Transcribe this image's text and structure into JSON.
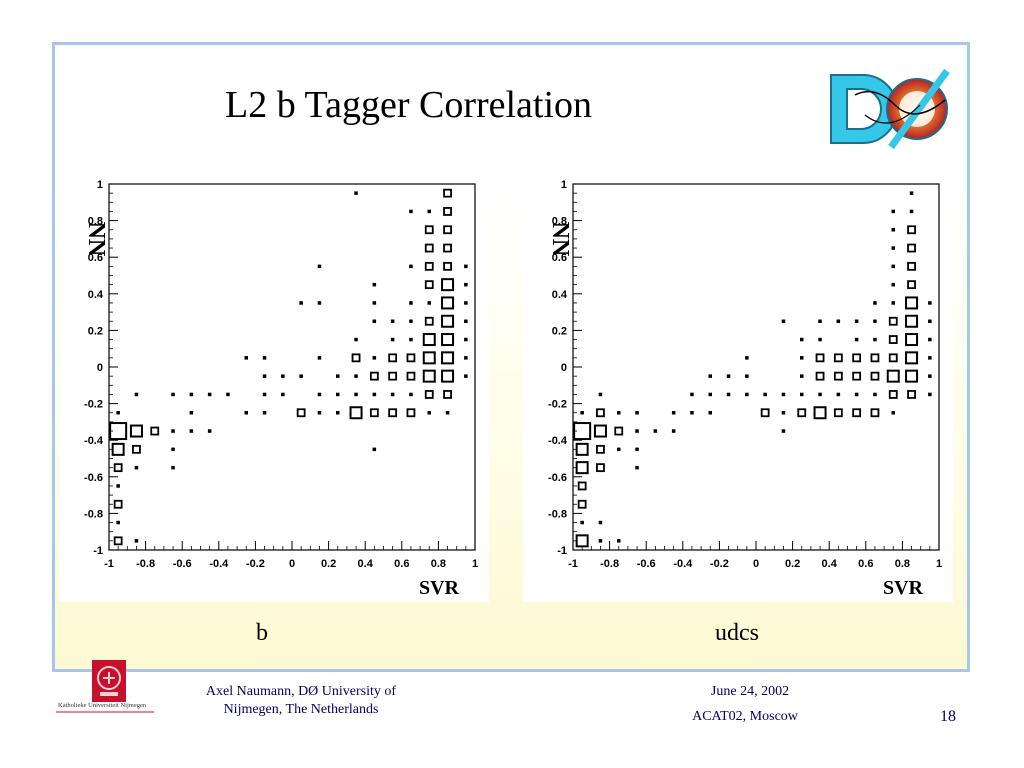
{
  "slide": {
    "title": "L2 b Tagger Correlation",
    "page_number": "18",
    "logo_name": "dzero-logo",
    "colors": {
      "frame_border": "#a7c7ea",
      "footer_text": "#000066",
      "accent_red": "#c0392b",
      "logo_cyan": "#35c6e8"
    }
  },
  "captions": {
    "left": "b",
    "right": "udcs"
  },
  "footer": {
    "author": "Axel Naumann, DØ University of Nijmegen, The Netherlands",
    "date": "June 24, 2002",
    "conference": "ACAT02, Moscow",
    "university_logo_text": "Katholieke Universiteit Nijmegen"
  },
  "chart_data": [
    {
      "type": "heatmap",
      "title": "",
      "xlabel": "SVR",
      "ylabel": "NN",
      "xlim": [
        -1,
        1
      ],
      "ylim": [
        -1,
        1
      ],
      "x_ticks": [
        "-1",
        "-0.8",
        "-0.6",
        "-0.4",
        "-0.2",
        "0",
        "0.2",
        "0.4",
        "0.6",
        "0.8",
        "1"
      ],
      "y_ticks": [
        "-1",
        "-0.8",
        "-0.6",
        "-0.4",
        "-0.2",
        "0",
        "0.2",
        "0.4",
        "0.6",
        "0.8",
        "1"
      ],
      "bins": [
        20,
        20
      ],
      "cells": [
        [
          -0.95,
          -0.95,
          2
        ],
        [
          -0.95,
          -0.85,
          1
        ],
        [
          -0.95,
          -0.75,
          2
        ],
        [
          -0.95,
          -0.65,
          1
        ],
        [
          -0.95,
          -0.55,
          2
        ],
        [
          -0.95,
          -0.45,
          3
        ],
        [
          -0.95,
          -0.35,
          4
        ],
        [
          -0.95,
          -0.25,
          1
        ],
        [
          -0.85,
          -0.95,
          1
        ],
        [
          -0.85,
          -0.55,
          1
        ],
        [
          -0.85,
          -0.45,
          2
        ],
        [
          -0.85,
          -0.35,
          3
        ],
        [
          -0.85,
          -0.15,
          1
        ],
        [
          -0.75,
          -0.35,
          2
        ],
        [
          -0.65,
          -0.55,
          1
        ],
        [
          -0.65,
          -0.45,
          1
        ],
        [
          -0.65,
          -0.35,
          1
        ],
        [
          -0.65,
          -0.15,
          1
        ],
        [
          -0.55,
          -0.35,
          1
        ],
        [
          -0.55,
          -0.25,
          1
        ],
        [
          -0.55,
          -0.15,
          1
        ],
        [
          -0.45,
          -0.35,
          1
        ],
        [
          -0.45,
          -0.15,
          1
        ],
        [
          -0.35,
          -0.15,
          1
        ],
        [
          -0.25,
          -0.25,
          1
        ],
        [
          -0.25,
          0.05,
          1
        ],
        [
          -0.15,
          -0.25,
          1
        ],
        [
          -0.15,
          -0.15,
          1
        ],
        [
          -0.15,
          -0.05,
          1
        ],
        [
          -0.15,
          0.05,
          1
        ],
        [
          -0.05,
          -0.15,
          1
        ],
        [
          -0.05,
          -0.05,
          1
        ],
        [
          0.05,
          -0.25,
          2
        ],
        [
          0.05,
          -0.05,
          1
        ],
        [
          0.05,
          0.35,
          1
        ],
        [
          0.15,
          -0.25,
          1
        ],
        [
          0.15,
          -0.15,
          1
        ],
        [
          0.15,
          0.05,
          1
        ],
        [
          0.15,
          0.35,
          1
        ],
        [
          0.15,
          0.55,
          1
        ],
        [
          0.25,
          -0.25,
          1
        ],
        [
          0.25,
          -0.15,
          1
        ],
        [
          0.25,
          -0.05,
          1
        ],
        [
          0.35,
          -0.25,
          3
        ],
        [
          0.35,
          -0.15,
          1
        ],
        [
          0.35,
          -0.05,
          1
        ],
        [
          0.35,
          0.05,
          2
        ],
        [
          0.35,
          0.15,
          1
        ],
        [
          0.35,
          0.95,
          1
        ],
        [
          0.45,
          -0.45,
          1
        ],
        [
          0.45,
          -0.25,
          2
        ],
        [
          0.45,
          -0.15,
          1
        ],
        [
          0.45,
          -0.05,
          2
        ],
        [
          0.45,
          0.05,
          1
        ],
        [
          0.45,
          0.25,
          1
        ],
        [
          0.45,
          0.35,
          1
        ],
        [
          0.45,
          0.45,
          1
        ],
        [
          0.55,
          -0.25,
          2
        ],
        [
          0.55,
          -0.15,
          1
        ],
        [
          0.55,
          -0.05,
          2
        ],
        [
          0.55,
          0.05,
          2
        ],
        [
          0.55,
          0.15,
          1
        ],
        [
          0.55,
          0.25,
          1
        ],
        [
          0.65,
          -0.25,
          2
        ],
        [
          0.65,
          -0.15,
          1
        ],
        [
          0.65,
          -0.05,
          2
        ],
        [
          0.65,
          0.05,
          2
        ],
        [
          0.65,
          0.15,
          1
        ],
        [
          0.65,
          0.25,
          1
        ],
        [
          0.65,
          0.35,
          1
        ],
        [
          0.65,
          0.55,
          1
        ],
        [
          0.65,
          0.85,
          1
        ],
        [
          0.75,
          -0.25,
          1
        ],
        [
          0.75,
          -0.15,
          2
        ],
        [
          0.75,
          -0.05,
          3
        ],
        [
          0.75,
          0.05,
          3
        ],
        [
          0.75,
          0.15,
          3
        ],
        [
          0.75,
          0.25,
          2
        ],
        [
          0.75,
          0.35,
          1
        ],
        [
          0.75,
          0.45,
          2
        ],
        [
          0.75,
          0.55,
          2
        ],
        [
          0.75,
          0.65,
          2
        ],
        [
          0.75,
          0.75,
          2
        ],
        [
          0.75,
          0.85,
          1
        ],
        [
          0.85,
          -0.25,
          1
        ],
        [
          0.85,
          -0.15,
          2
        ],
        [
          0.85,
          -0.05,
          3
        ],
        [
          0.85,
          0.05,
          3
        ],
        [
          0.85,
          0.15,
          3
        ],
        [
          0.85,
          0.25,
          3
        ],
        [
          0.85,
          0.35,
          3
        ],
        [
          0.85,
          0.45,
          3
        ],
        [
          0.85,
          0.55,
          2
        ],
        [
          0.85,
          0.65,
          2
        ],
        [
          0.85,
          0.75,
          2
        ],
        [
          0.85,
          0.85,
          2
        ],
        [
          0.85,
          0.95,
          2
        ],
        [
          0.95,
          -0.05,
          1
        ],
        [
          0.95,
          0.05,
          1
        ],
        [
          0.95,
          0.15,
          1
        ],
        [
          0.95,
          0.25,
          1
        ],
        [
          0.95,
          0.35,
          1
        ],
        [
          0.95,
          0.45,
          1
        ],
        [
          0.95,
          0.55,
          1
        ]
      ]
    },
    {
      "type": "heatmap",
      "title": "",
      "xlabel": "SVR",
      "ylabel": "NN",
      "xlim": [
        -1,
        1
      ],
      "ylim": [
        -1,
        1
      ],
      "x_ticks": [
        "-1",
        "-0.8",
        "-0.6",
        "-0.4",
        "-0.2",
        "0",
        "0.2",
        "0.4",
        "0.6",
        "0.8",
        "1"
      ],
      "y_ticks": [
        "-1",
        "-0.8",
        "-0.6",
        "-0.4",
        "-0.2",
        "0",
        "0.2",
        "0.4",
        "0.6",
        "0.8",
        "1"
      ],
      "bins": [
        20,
        20
      ],
      "cells": [
        [
          -0.95,
          -0.95,
          3
        ],
        [
          -0.95,
          -0.85,
          1
        ],
        [
          -0.95,
          -0.75,
          2
        ],
        [
          -0.95,
          -0.65,
          2
        ],
        [
          -0.95,
          -0.55,
          3
        ],
        [
          -0.95,
          -0.45,
          3
        ],
        [
          -0.95,
          -0.35,
          4
        ],
        [
          -0.95,
          -0.25,
          1
        ],
        [
          -0.85,
          -0.95,
          1
        ],
        [
          -0.85,
          -0.85,
          1
        ],
        [
          -0.85,
          -0.55,
          2
        ],
        [
          -0.85,
          -0.45,
          2
        ],
        [
          -0.85,
          -0.35,
          3
        ],
        [
          -0.85,
          -0.25,
          2
        ],
        [
          -0.85,
          -0.15,
          1
        ],
        [
          -0.75,
          -0.95,
          1
        ],
        [
          -0.75,
          -0.45,
          1
        ],
        [
          -0.75,
          -0.35,
          2
        ],
        [
          -0.75,
          -0.25,
          1
        ],
        [
          -0.65,
          -0.55,
          1
        ],
        [
          -0.65,
          -0.45,
          1
        ],
        [
          -0.65,
          -0.35,
          1
        ],
        [
          -0.65,
          -0.25,
          1
        ],
        [
          -0.55,
          -0.35,
          1
        ],
        [
          -0.45,
          -0.35,
          1
        ],
        [
          -0.45,
          -0.25,
          1
        ],
        [
          -0.35,
          -0.25,
          1
        ],
        [
          -0.35,
          -0.15,
          1
        ],
        [
          -0.25,
          -0.25,
          1
        ],
        [
          -0.25,
          -0.15,
          1
        ],
        [
          -0.25,
          -0.05,
          1
        ],
        [
          -0.15,
          -0.15,
          1
        ],
        [
          -0.15,
          -0.05,
          1
        ],
        [
          -0.05,
          -0.15,
          1
        ],
        [
          -0.05,
          -0.05,
          1
        ],
        [
          -0.05,
          0.05,
          1
        ],
        [
          0.05,
          -0.25,
          2
        ],
        [
          0.05,
          -0.15,
          1
        ],
        [
          0.15,
          -0.35,
          1
        ],
        [
          0.15,
          -0.25,
          1
        ],
        [
          0.15,
          -0.15,
          1
        ],
        [
          0.15,
          0.25,
          1
        ],
        [
          0.25,
          -0.25,
          2
        ],
        [
          0.25,
          -0.15,
          1
        ],
        [
          0.25,
          -0.05,
          1
        ],
        [
          0.25,
          0.05,
          1
        ],
        [
          0.25,
          0.15,
          1
        ],
        [
          0.35,
          -0.25,
          3
        ],
        [
          0.35,
          -0.15,
          1
        ],
        [
          0.35,
          -0.05,
          2
        ],
        [
          0.35,
          0.05,
          2
        ],
        [
          0.35,
          0.15,
          1
        ],
        [
          0.35,
          0.25,
          1
        ],
        [
          0.45,
          -0.25,
          2
        ],
        [
          0.45,
          -0.15,
          1
        ],
        [
          0.45,
          -0.05,
          2
        ],
        [
          0.45,
          0.05,
          2
        ],
        [
          0.45,
          0.25,
          1
        ],
        [
          0.55,
          -0.25,
          2
        ],
        [
          0.55,
          -0.15,
          1
        ],
        [
          0.55,
          -0.05,
          2
        ],
        [
          0.55,
          0.05,
          2
        ],
        [
          0.55,
          0.15,
          1
        ],
        [
          0.55,
          0.25,
          1
        ],
        [
          0.65,
          -0.25,
          2
        ],
        [
          0.65,
          -0.15,
          1
        ],
        [
          0.65,
          -0.05,
          2
        ],
        [
          0.65,
          0.05,
          2
        ],
        [
          0.65,
          0.15,
          1
        ],
        [
          0.65,
          0.25,
          1
        ],
        [
          0.65,
          0.35,
          1
        ],
        [
          0.75,
          -0.25,
          1
        ],
        [
          0.75,
          -0.15,
          2
        ],
        [
          0.75,
          -0.05,
          3
        ],
        [
          0.75,
          0.05,
          2
        ],
        [
          0.75,
          0.15,
          2
        ],
        [
          0.75,
          0.25,
          2
        ],
        [
          0.75,
          0.35,
          1
        ],
        [
          0.75,
          0.45,
          1
        ],
        [
          0.75,
          0.55,
          1
        ],
        [
          0.75,
          0.65,
          1
        ],
        [
          0.75,
          0.75,
          1
        ],
        [
          0.75,
          0.85,
          1
        ],
        [
          0.85,
          -0.15,
          2
        ],
        [
          0.85,
          -0.05,
          3
        ],
        [
          0.85,
          0.05,
          3
        ],
        [
          0.85,
          0.15,
          3
        ],
        [
          0.85,
          0.25,
          3
        ],
        [
          0.85,
          0.35,
          3
        ],
        [
          0.85,
          0.45,
          2
        ],
        [
          0.85,
          0.55,
          2
        ],
        [
          0.85,
          0.65,
          2
        ],
        [
          0.85,
          0.75,
          2
        ],
        [
          0.85,
          0.85,
          1
        ],
        [
          0.85,
          0.95,
          1
        ],
        [
          0.95,
          -0.15,
          1
        ],
        [
          0.95,
          -0.05,
          1
        ],
        [
          0.95,
          0.05,
          1
        ],
        [
          0.95,
          0.15,
          1
        ],
        [
          0.95,
          0.25,
          1
        ],
        [
          0.95,
          0.35,
          1
        ]
      ]
    }
  ]
}
